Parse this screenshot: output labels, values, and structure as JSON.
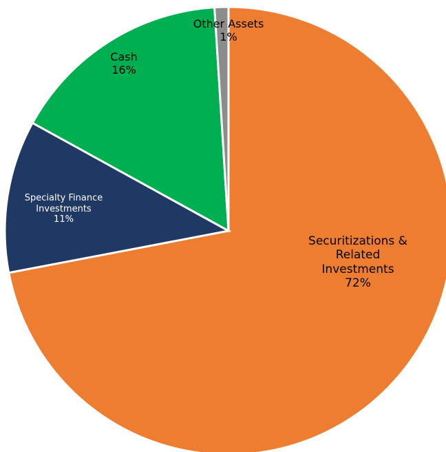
{
  "chart_data": {
    "type": "pie",
    "title": "",
    "slices": [
      {
        "name_lines": [
          "Securitizations &",
          "Related",
          "Investments"
        ],
        "label": "Securitizations & Related Investments",
        "value": 72,
        "value_label": "72%",
        "color": "#ED7D31"
      },
      {
        "name_lines": [
          "Specialty Finance",
          "Investments"
        ],
        "label": "Specialty Finance Investments",
        "value": 11,
        "value_label": "11%",
        "color": "#1F3864"
      },
      {
        "name_lines": [
          "Cash"
        ],
        "label": "Cash",
        "value": 16,
        "value_label": "16%",
        "color": "#00B050"
      },
      {
        "name_lines": [
          "Other Assets"
        ],
        "label": "Other Assets",
        "value": 1,
        "value_label": "1%",
        "color": "#8C8C8C"
      }
    ]
  }
}
